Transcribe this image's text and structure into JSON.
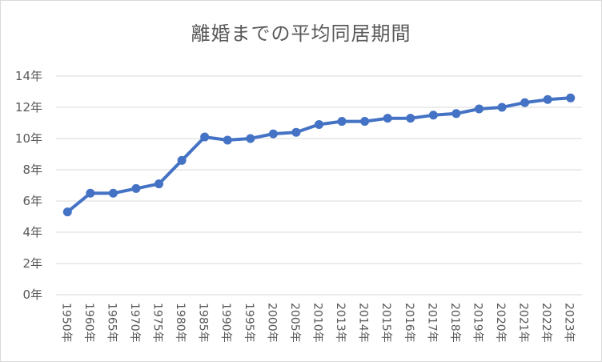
{
  "chart_data": {
    "type": "line",
    "title": "離婚までの平均同居期間",
    "xlabel": "",
    "ylabel": "",
    "categories": [
      "1950年",
      "1960年",
      "1965年",
      "1970年",
      "1975年",
      "1980年",
      "1985年",
      "1990年",
      "1995年",
      "2000年",
      "2005年",
      "2010年",
      "2013年",
      "2014年",
      "2015年",
      "2016年",
      "2017年",
      "2018年",
      "2019年",
      "2020年",
      "2021年",
      "2022年",
      "2023年"
    ],
    "values": [
      5.3,
      6.5,
      6.5,
      6.8,
      7.1,
      8.6,
      10.1,
      9.9,
      10.0,
      10.3,
      10.4,
      10.9,
      11.1,
      11.1,
      11.3,
      11.3,
      11.5,
      11.6,
      11.9,
      12.0,
      12.3,
      12.5,
      12.6
    ],
    "ylim": [
      0,
      14
    ],
    "yticks": [
      "0年",
      "2年",
      "4年",
      "6年",
      "8年",
      "10年",
      "12年",
      "14年"
    ],
    "grid": true,
    "legend": "none",
    "line_color": "#4472c4",
    "grid_color": "#d9d9d9"
  }
}
